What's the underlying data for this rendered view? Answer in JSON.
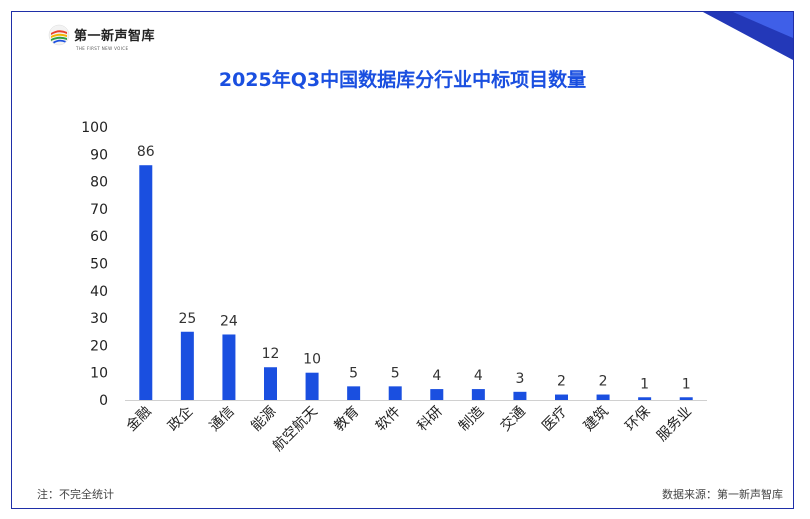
{
  "brand": {
    "name": "第一新声智库",
    "tagline": "THE FIRST NEW VOICE"
  },
  "colors": {
    "bar": "#1a4fe0",
    "title": "#1a4fe0",
    "frame": "#1f2fa8"
  },
  "footnote": "注：不完全统计",
  "source": "数据来源：第一新声智库",
  "chart_data": {
    "type": "bar",
    "title": "2025年Q3中国数据库分行业中标项目数量",
    "xlabel": "",
    "ylabel": "",
    "categories": [
      "金融",
      "政企",
      "通信",
      "能源",
      "航空航天",
      "教育",
      "软件",
      "科研",
      "制造",
      "交通",
      "医疗",
      "建筑",
      "环保",
      "服务业"
    ],
    "values": [
      86,
      25,
      24,
      12,
      10,
      5,
      5,
      4,
      4,
      3,
      2,
      2,
      1,
      1
    ],
    "ylim": [
      0,
      100
    ],
    "yticks": [
      0,
      10,
      20,
      30,
      40,
      50,
      60,
      70,
      80,
      90,
      100
    ],
    "grid": false,
    "legend": "none",
    "data_labels": true
  }
}
